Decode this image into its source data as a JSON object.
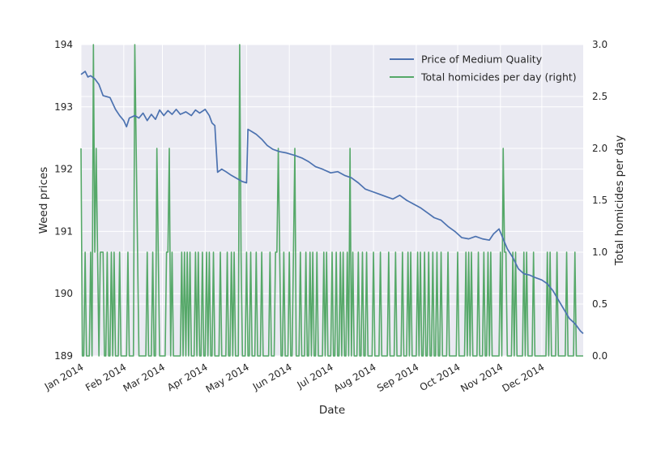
{
  "chart_data": {
    "type": "line",
    "xlabel": "Date",
    "ylabel_left": "Weed prices",
    "ylabel_right": "Total homicides per day",
    "x_range": [
      "2014-01-01",
      "2014-12-31"
    ],
    "x_ticks": [
      "2014-01-01",
      "2014-02-01",
      "2014-03-01",
      "2014-04-01",
      "2014-05-01",
      "2014-06-01",
      "2014-07-01",
      "2014-08-01",
      "2014-09-01",
      "2014-10-01",
      "2014-11-01",
      "2014-12-01"
    ],
    "x_tick_labels": [
      "Jan 2014",
      "Feb 2014",
      "Mar 2014",
      "Apr 2014",
      "May 2014",
      "Jun 2014",
      "Jul 2014",
      "Aug 2014",
      "Sep 2014",
      "Oct 2014",
      "Nov 2014",
      "Dec 2014"
    ],
    "ylim_left": [
      189,
      194
    ],
    "yticks_left": [
      189,
      190,
      191,
      192,
      193,
      194
    ],
    "ylim_right": [
      0,
      3
    ],
    "yticks_right": [
      "0.0",
      "0.5",
      "1.0",
      "1.5",
      "2.0",
      "2.5",
      "3.0"
    ],
    "grid": true,
    "legend_position": "top-right",
    "legend": [
      "Price of Medium Quality",
      "Total homicides per day (right)"
    ],
    "colors": {
      "price": "#4c72b0",
      "homicides": "#55a868",
      "plot_bg": "#eaeaf2",
      "grid": "#ffffff"
    },
    "series": [
      {
        "name": "Price of Medium Quality",
        "axis": "left",
        "points": [
          [
            "2014-01-01",
            193.52
          ],
          [
            "2014-01-04",
            193.57
          ],
          [
            "2014-01-06",
            193.48
          ],
          [
            "2014-01-08",
            193.5
          ],
          [
            "2014-01-11",
            193.45
          ],
          [
            "2014-01-14",
            193.36
          ],
          [
            "2014-01-17",
            193.18
          ],
          [
            "2014-01-22",
            193.15
          ],
          [
            "2014-01-26",
            192.96
          ],
          [
            "2014-01-29",
            192.86
          ],
          [
            "2014-02-01",
            192.78
          ],
          [
            "2014-02-03",
            192.68
          ],
          [
            "2014-02-05",
            192.82
          ],
          [
            "2014-02-09",
            192.86
          ],
          [
            "2014-02-12",
            192.82
          ],
          [
            "2014-02-15",
            192.9
          ],
          [
            "2014-02-18",
            192.78
          ],
          [
            "2014-02-21",
            192.88
          ],
          [
            "2014-02-24",
            192.8
          ],
          [
            "2014-02-27",
            192.95
          ],
          [
            "2014-03-02",
            192.86
          ],
          [
            "2014-03-05",
            192.94
          ],
          [
            "2014-03-08",
            192.88
          ],
          [
            "2014-03-11",
            192.96
          ],
          [
            "2014-03-14",
            192.88
          ],
          [
            "2014-03-18",
            192.92
          ],
          [
            "2014-03-22",
            192.86
          ],
          [
            "2014-03-25",
            192.95
          ],
          [
            "2014-03-28",
            192.9
          ],
          [
            "2014-04-01",
            192.96
          ],
          [
            "2014-04-04",
            192.86
          ],
          [
            "2014-04-06",
            192.74
          ],
          [
            "2014-04-08",
            192.7
          ],
          [
            "2014-04-10",
            191.95
          ],
          [
            "2014-04-13",
            192.0
          ],
          [
            "2014-04-16",
            191.96
          ],
          [
            "2014-04-20",
            191.9
          ],
          [
            "2014-04-24",
            191.85
          ],
          [
            "2014-04-28",
            191.8
          ],
          [
            "2014-05-01",
            191.78
          ],
          [
            "2014-05-02",
            192.64
          ],
          [
            "2014-05-05",
            192.6
          ],
          [
            "2014-05-08",
            192.56
          ],
          [
            "2014-05-12",
            192.48
          ],
          [
            "2014-05-16",
            192.38
          ],
          [
            "2014-05-20",
            192.32
          ],
          [
            "2014-05-25",
            192.28
          ],
          [
            "2014-05-30",
            192.26
          ],
          [
            "2014-06-05",
            192.22
          ],
          [
            "2014-06-10",
            192.18
          ],
          [
            "2014-06-15",
            192.12
          ],
          [
            "2014-06-20",
            192.04
          ],
          [
            "2014-06-25",
            192.0
          ],
          [
            "2014-07-01",
            191.94
          ],
          [
            "2014-07-06",
            191.96
          ],
          [
            "2014-07-11",
            191.9
          ],
          [
            "2014-07-16",
            191.86
          ],
          [
            "2014-07-21",
            191.78
          ],
          [
            "2014-07-26",
            191.68
          ],
          [
            "2014-07-31",
            191.64
          ],
          [
            "2014-08-05",
            191.6
          ],
          [
            "2014-08-10",
            191.56
          ],
          [
            "2014-08-15",
            191.52
          ],
          [
            "2014-08-20",
            191.58
          ],
          [
            "2014-08-25",
            191.5
          ],
          [
            "2014-08-30",
            191.44
          ],
          [
            "2014-09-04",
            191.38
          ],
          [
            "2014-09-09",
            191.3
          ],
          [
            "2014-09-14",
            191.22
          ],
          [
            "2014-09-19",
            191.18
          ],
          [
            "2014-09-24",
            191.08
          ],
          [
            "2014-09-29",
            191.0
          ],
          [
            "2014-10-04",
            190.9
          ],
          [
            "2014-10-09",
            190.88
          ],
          [
            "2014-10-14",
            190.92
          ],
          [
            "2014-10-19",
            190.88
          ],
          [
            "2014-10-24",
            190.86
          ],
          [
            "2014-10-27",
            190.96
          ],
          [
            "2014-10-31",
            191.04
          ],
          [
            "2014-11-03",
            190.88
          ],
          [
            "2014-11-06",
            190.72
          ],
          [
            "2014-11-10",
            190.58
          ],
          [
            "2014-11-14",
            190.4
          ],
          [
            "2014-11-18",
            190.32
          ],
          [
            "2014-11-22",
            190.3
          ],
          [
            "2014-11-26",
            190.26
          ],
          [
            "2014-12-01",
            190.22
          ],
          [
            "2014-12-05",
            190.16
          ],
          [
            "2014-12-09",
            190.05
          ],
          [
            "2014-12-13",
            189.9
          ],
          [
            "2014-12-17",
            189.75
          ],
          [
            "2014-12-21",
            189.6
          ],
          [
            "2014-12-25",
            189.52
          ],
          [
            "2014-12-29",
            189.4
          ],
          [
            "2014-12-31",
            189.36
          ]
        ]
      },
      {
        "name": "Total homicides per day (right)",
        "axis": "right",
        "spikes": [
          [
            "2014-01-01",
            2
          ],
          [
            "2014-01-04",
            1
          ],
          [
            "2014-01-08",
            1
          ],
          [
            "2014-01-10",
            3
          ],
          [
            "2014-01-11",
            1
          ],
          [
            "2014-01-12",
            2
          ],
          [
            "2014-01-13",
            1
          ],
          [
            "2014-01-15",
            1
          ],
          [
            "2014-01-16",
            1
          ],
          [
            "2014-01-17",
            1
          ],
          [
            "2014-01-20",
            1
          ],
          [
            "2014-01-23",
            1
          ],
          [
            "2014-01-25",
            1
          ],
          [
            "2014-01-29",
            1
          ],
          [
            "2014-02-04",
            1
          ],
          [
            "2014-02-09",
            3
          ],
          [
            "2014-02-10",
            2
          ],
          [
            "2014-02-11",
            1
          ],
          [
            "2014-02-18",
            1
          ],
          [
            "2014-02-22",
            1
          ],
          [
            "2014-02-25",
            2
          ],
          [
            "2014-02-26",
            1
          ],
          [
            "2014-03-04",
            1
          ],
          [
            "2014-03-05",
            1
          ],
          [
            "2014-03-06",
            2
          ],
          [
            "2014-03-08",
            1
          ],
          [
            "2014-03-15",
            1
          ],
          [
            "2014-03-17",
            1
          ],
          [
            "2014-03-19",
            1
          ],
          [
            "2014-03-21",
            1
          ],
          [
            "2014-03-25",
            1
          ],
          [
            "2014-03-27",
            1
          ],
          [
            "2014-03-30",
            1
          ],
          [
            "2014-04-02",
            1
          ],
          [
            "2014-04-04",
            1
          ],
          [
            "2014-04-07",
            1
          ],
          [
            "2014-04-12",
            1
          ],
          [
            "2014-04-17",
            1
          ],
          [
            "2014-04-20",
            1
          ],
          [
            "2014-04-22",
            1
          ],
          [
            "2014-04-26",
            3
          ],
          [
            "2014-04-27",
            1
          ],
          [
            "2014-05-01",
            1
          ],
          [
            "2014-05-04",
            1
          ],
          [
            "2014-05-08",
            1
          ],
          [
            "2014-05-12",
            1
          ],
          [
            "2014-05-18",
            1
          ],
          [
            "2014-05-22",
            1
          ],
          [
            "2014-05-23",
            1
          ],
          [
            "2014-05-24",
            2
          ],
          [
            "2014-05-25",
            1
          ],
          [
            "2014-05-28",
            1
          ],
          [
            "2014-06-01",
            1
          ],
          [
            "2014-06-04",
            1
          ],
          [
            "2014-06-05",
            2
          ],
          [
            "2014-06-09",
            1
          ],
          [
            "2014-06-13",
            1
          ],
          [
            "2014-06-16",
            1
          ],
          [
            "2014-06-18",
            1
          ],
          [
            "2014-06-21",
            1
          ],
          [
            "2014-06-26",
            1
          ],
          [
            "2014-06-28",
            1
          ],
          [
            "2014-07-02",
            1
          ],
          [
            "2014-07-05",
            1
          ],
          [
            "2014-07-08",
            1
          ],
          [
            "2014-07-10",
            1
          ],
          [
            "2014-07-13",
            1
          ],
          [
            "2014-07-15",
            2
          ],
          [
            "2014-07-17",
            1
          ],
          [
            "2014-07-21",
            1
          ],
          [
            "2014-07-24",
            1
          ],
          [
            "2014-07-27",
            1
          ],
          [
            "2014-08-01",
            1
          ],
          [
            "2014-08-06",
            1
          ],
          [
            "2014-08-12",
            1
          ],
          [
            "2014-08-17",
            1
          ],
          [
            "2014-08-22",
            1
          ],
          [
            "2014-08-26",
            1
          ],
          [
            "2014-08-28",
            1
          ],
          [
            "2014-09-02",
            1
          ],
          [
            "2014-09-04",
            1
          ],
          [
            "2014-09-07",
            1
          ],
          [
            "2014-09-10",
            1
          ],
          [
            "2014-09-13",
            1
          ],
          [
            "2014-09-16",
            1
          ],
          [
            "2014-09-19",
            1
          ],
          [
            "2014-09-24",
            1
          ],
          [
            "2014-10-01",
            1
          ],
          [
            "2014-10-07",
            1
          ],
          [
            "2014-10-09",
            1
          ],
          [
            "2014-10-11",
            1
          ],
          [
            "2014-10-16",
            1
          ],
          [
            "2014-10-20",
            1
          ],
          [
            "2014-10-23",
            1
          ],
          [
            "2014-10-25",
            1
          ],
          [
            "2014-11-01",
            1
          ],
          [
            "2014-11-03",
            2
          ],
          [
            "2014-11-04",
            1
          ],
          [
            "2014-11-05",
            1
          ],
          [
            "2014-11-10",
            1
          ],
          [
            "2014-11-12",
            1
          ],
          [
            "2014-11-18",
            1
          ],
          [
            "2014-11-20",
            1
          ],
          [
            "2014-11-25",
            1
          ],
          [
            "2014-12-05",
            1
          ],
          [
            "2014-12-07",
            1
          ],
          [
            "2014-12-12",
            1
          ],
          [
            "2014-12-19",
            1
          ],
          [
            "2014-12-25",
            1
          ]
        ]
      }
    ]
  }
}
